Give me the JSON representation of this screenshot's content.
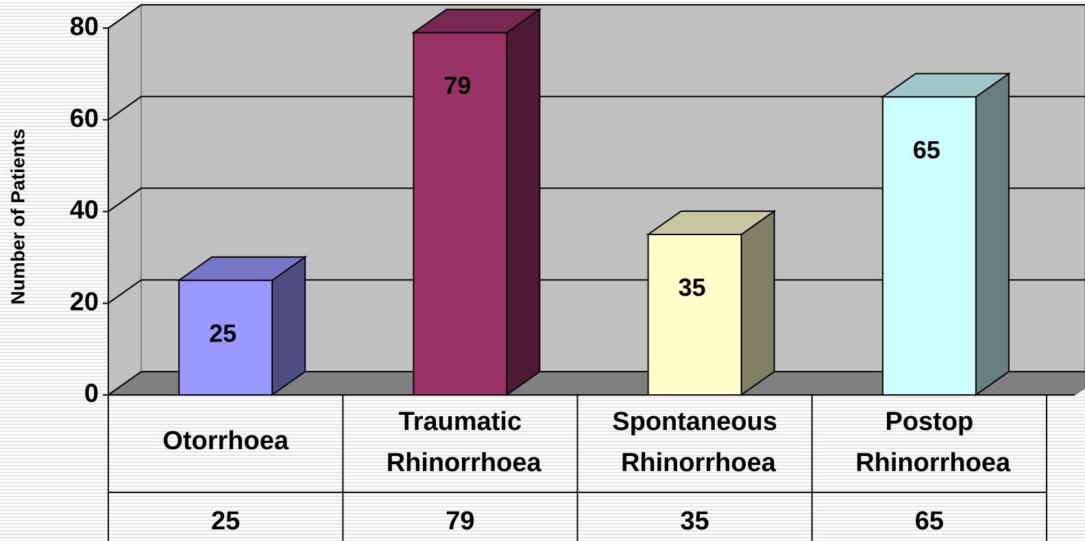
{
  "chart_data": {
    "type": "bar3d",
    "y_axis_label": "Number of Patients",
    "categories": [
      "Otorrhoea",
      "Traumatic Rhinorrhoea",
      "Spontaneous Rhinorrhoea",
      "Postop Rhinorrhoea"
    ],
    "values": [
      25,
      79,
      35,
      65
    ],
    "colors": [
      "#9999ff",
      "#993366",
      "#ffffcc",
      "#ccffff"
    ],
    "ylim": [
      0,
      80
    ],
    "yticks": [
      0,
      20,
      40,
      60,
      80
    ],
    "grid": true,
    "data_table": true
  }
}
